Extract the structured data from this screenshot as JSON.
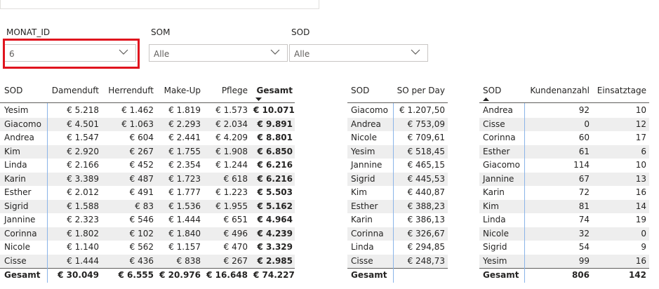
{
  "filters": [
    {
      "label": "MONAT_ID",
      "value": "6"
    },
    {
      "label": "SOM",
      "value": "Alle"
    },
    {
      "label": "SOD",
      "value": "Alle"
    }
  ],
  "tables": [
    {
      "headers": [
        "SOD",
        "Damenduft",
        "Herrenduft",
        "Make-Up",
        "Pflege",
        "Gesamt"
      ],
      "rows": [
        [
          "Yesim",
          "€ 5.218",
          "€ 1.462",
          "€ 1.819",
          "€ 1.573",
          "€ 10.071"
        ],
        [
          "Giacomo",
          "€ 4.501",
          "€ 1.063",
          "€ 2.293",
          "€ 2.034",
          "€ 9.891"
        ],
        [
          "Andrea",
          "€ 1.547",
          "€ 604",
          "€ 2.441",
          "€ 4.209",
          "€ 8.801"
        ],
        [
          "Kim",
          "€ 2.920",
          "€ 267",
          "€ 1.755",
          "€ 1.908",
          "€ 6.850"
        ],
        [
          "Linda",
          "€ 2.166",
          "€ 452",
          "€ 2.354",
          "€ 1.244",
          "€ 6.216"
        ],
        [
          "Karin",
          "€ 3.389",
          "€ 487",
          "€ 1.723",
          "€ 618",
          "€ 6.216"
        ],
        [
          "Esther",
          "€ 2.012",
          "€ 491",
          "€ 1.777",
          "€ 1.223",
          "€ 5.503"
        ],
        [
          "Sigrid",
          "€ 1.588",
          "€ 83",
          "€ 1.536",
          "€ 1.955",
          "€ 5.162"
        ],
        [
          "Jannine",
          "€ 2.323",
          "€ 546",
          "€ 1.444",
          "€ 651",
          "€ 4.964"
        ],
        [
          "Corinna",
          "€ 1.802",
          "€ 102",
          "€ 1.840",
          "€ 496",
          "€ 4.239"
        ],
        [
          "Nicole",
          "€ 1.140",
          "€ 562",
          "€ 1.157",
          "€ 470",
          "€ 3.329"
        ],
        [
          "Cisse",
          "€ 1.444",
          "€ 436",
          "€ 838",
          "€ 267",
          "€ 2.985"
        ]
      ],
      "total": [
        "Gesamt",
        "€ 30.049",
        "€ 6.555",
        "€ 20.976",
        "€ 16.648",
        "€ 74.227"
      ]
    },
    {
      "headers": [
        "SOD",
        "SO per Day"
      ],
      "rows": [
        [
          "Giacomo",
          "€ 1.207,50"
        ],
        [
          "Andrea",
          "€ 753,09"
        ],
        [
          "Nicole",
          "€ 709,61"
        ],
        [
          "Yesim",
          "€ 518,45"
        ],
        [
          "Jannine",
          "€ 465,15"
        ],
        [
          "Sigrid",
          "€ 445,53"
        ],
        [
          "Kim",
          "€ 440,87"
        ],
        [
          "Esther",
          "€ 388,23"
        ],
        [
          "Karin",
          "€ 386,13"
        ],
        [
          "Corinna",
          "€ 326,67"
        ],
        [
          "Linda",
          "€ 294,85"
        ],
        [
          "Cisse",
          "€ 248,73"
        ]
      ],
      "total": [
        "Gesamt"
      ]
    },
    {
      "headers": [
        "SOD",
        "Kundenanzahl",
        "Einsatztage"
      ],
      "rows": [
        [
          "Andrea",
          "92",
          "10"
        ],
        [
          "Cisse",
          "0",
          "12"
        ],
        [
          "Corinna",
          "60",
          "17"
        ],
        [
          "Esther",
          "61",
          "6"
        ],
        [
          "Giacomo",
          "114",
          "10"
        ],
        [
          "Jannine",
          "67",
          "13"
        ],
        [
          "Karin",
          "72",
          "16"
        ],
        [
          "Kim",
          "81",
          "14"
        ],
        [
          "Linda",
          "74",
          "19"
        ],
        [
          "Nicole",
          "32",
          "0"
        ],
        [
          "Sigrid",
          "54",
          "9"
        ],
        [
          "Yesim",
          "99",
          "16"
        ]
      ],
      "total": [
        "Gesamt",
        "806",
        "142"
      ]
    }
  ]
}
